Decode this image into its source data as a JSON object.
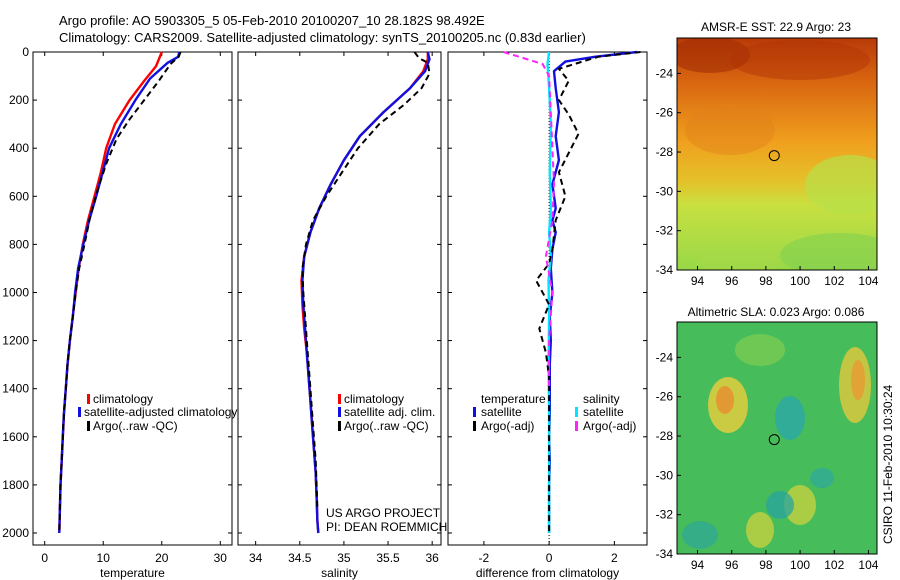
{
  "header": {
    "line1": "Argo profile: AO 5903305_5 05-Feb-2010 20100207_10 28.182S 98.492E",
    "line2": "Climatology: CARS2009. Satellite-adjusted climatology: synTS_20100205.nc (0.83d earlier)"
  },
  "footer": {
    "project": "US ARGO PROJECT",
    "pi": "PI: DEAN ROEMMICH",
    "credit": "CSIRO 11-Feb-2010 10:30:24"
  },
  "colors": {
    "red": "#ff0000",
    "blue": "#1010e0",
    "black": "#000000",
    "cyan": "#00e5ff",
    "magenta": "#ff22ff"
  },
  "chart_data": [
    {
      "type": "line",
      "name": "temperature-profile",
      "xlabel": "temperature",
      "xlim": [
        -2,
        32
      ],
      "ylim": [
        0,
        2050
      ],
      "xticks": [
        0,
        10,
        20,
        30
      ],
      "yticks": [
        0,
        200,
        400,
        600,
        800,
        1000,
        1200,
        1400,
        1600,
        1800,
        2000
      ],
      "legend": [
        "climatology",
        "satellite-adjusted climatology",
        "Argo(..raw -QC)"
      ],
      "series": [
        {
          "name": "climatology",
          "color": "red",
          "dash": false,
          "x": [
            20.0,
            19.6,
            19.0,
            17.0,
            14.5,
            12.0,
            10.5,
            9.6,
            8.5,
            7.4,
            6.5,
            5.8,
            5.3,
            4.8,
            4.3,
            3.9,
            3.6,
            3.3,
            3.1,
            2.9,
            2.7,
            2.6,
            2.5
          ],
          "y": [
            0,
            25,
            60,
            120,
            200,
            300,
            400,
            500,
            600,
            700,
            800,
            900,
            1000,
            1100,
            1200,
            1300,
            1400,
            1500,
            1600,
            1700,
            1800,
            1900,
            2000
          ]
        },
        {
          "name": "satellite-adjusted climatology",
          "color": "blue",
          "dash": false,
          "x": [
            23.0,
            22.8,
            21.0,
            18.0,
            15.5,
            13.0,
            11.0,
            9.9,
            8.8,
            7.6,
            6.6,
            5.7,
            5.2,
            4.8,
            4.3,
            3.9,
            3.6,
            3.3,
            3.1,
            2.9,
            2.7,
            2.6,
            2.5
          ],
          "y": [
            0,
            20,
            45,
            110,
            200,
            300,
            400,
            500,
            600,
            700,
            800,
            900,
            1000,
            1100,
            1200,
            1300,
            1400,
            1500,
            1600,
            1700,
            1800,
            1900,
            2000
          ]
        },
        {
          "name": "Argo(..raw -QC)",
          "color": "black",
          "dash": true,
          "x": [
            23.2,
            22.9,
            21.5,
            19.5,
            17.0,
            14.5,
            12.3,
            10.6,
            9.2,
            7.8,
            6.8,
            5.9,
            5.3,
            4.8,
            4.3,
            3.9,
            3.6,
            3.3,
            3.1,
            2.9,
            2.7,
            2.6,
            2.5
          ],
          "y": [
            0,
            20,
            50,
            120,
            200,
            280,
            360,
            460,
            560,
            680,
            800,
            900,
            1000,
            1100,
            1200,
            1300,
            1400,
            1500,
            1600,
            1700,
            1800,
            1900,
            2000
          ]
        }
      ]
    },
    {
      "type": "line",
      "name": "salinity-profile",
      "xlabel": "salinity",
      "xlim": [
        33.8,
        36.1
      ],
      "ylim": [
        0,
        2050
      ],
      "xticks": [
        34,
        34.5,
        35,
        35.5,
        36
      ],
      "legend": [
        "climatology",
        "satellite adj. clim.",
        "Argo(..raw -QC)"
      ],
      "series": [
        {
          "name": "climatology",
          "color": "red",
          "dash": false,
          "x": [
            35.95,
            35.95,
            35.9,
            35.75,
            35.45,
            35.18,
            35.0,
            34.85,
            34.72,
            34.62,
            34.55,
            34.52,
            34.53,
            34.55,
            34.58,
            34.6,
            34.62,
            34.64,
            34.66,
            34.68,
            34.69,
            34.7,
            34.71
          ],
          "y": [
            0,
            30,
            80,
            150,
            250,
            350,
            450,
            550,
            650,
            750,
            850,
            950,
            1050,
            1150,
            1250,
            1350,
            1450,
            1550,
            1650,
            1750,
            1850,
            1950,
            2000
          ]
        },
        {
          "name": "satellite adj. clim.",
          "color": "blue",
          "dash": false,
          "x": [
            35.95,
            35.97,
            35.92,
            35.75,
            35.45,
            35.18,
            35.0,
            34.85,
            34.72,
            34.62,
            34.55,
            34.53,
            34.54,
            34.56,
            34.58,
            34.6,
            34.62,
            34.64,
            34.66,
            34.68,
            34.69,
            34.7,
            34.71
          ],
          "y": [
            0,
            30,
            80,
            150,
            250,
            350,
            450,
            550,
            650,
            750,
            850,
            950,
            1050,
            1150,
            1250,
            1350,
            1450,
            1550,
            1650,
            1750,
            1850,
            1950,
            2000
          ]
        },
        {
          "name": "Argo(..raw -QC)",
          "color": "black",
          "dash": true,
          "x": [
            35.8,
            35.85,
            35.95,
            35.97,
            35.88,
            35.68,
            35.4,
            35.16,
            34.98,
            34.8,
            34.65,
            34.57,
            34.53,
            34.54,
            34.56,
            34.58,
            34.6,
            34.62,
            34.64,
            34.66,
            34.68,
            34.69,
            34.7
          ],
          "y": [
            0,
            25,
            45,
            90,
            150,
            220,
            300,
            400,
            500,
            600,
            700,
            800,
            900,
            1000,
            1100,
            1200,
            1300,
            1400,
            1500,
            1600,
            1700,
            1800,
            1900
          ]
        }
      ]
    },
    {
      "type": "line",
      "name": "difference-profile",
      "xlabel": "difference from climatology",
      "xlim": [
        -3.1,
        3.0
      ],
      "ylim": [
        0,
        2050
      ],
      "xticks": [
        -2,
        0,
        2
      ],
      "legend_groups": [
        {
          "title": "temperature",
          "items": [
            "satellite",
            "Argo(-adj)"
          ]
        },
        {
          "title": "salinity",
          "items": [
            "satellite",
            "Argo(-adj)"
          ]
        }
      ],
      "series": [
        {
          "name": "temperature satellite",
          "color": "blue",
          "dash": false,
          "x": [
            2.7,
            1.4,
            0.5,
            0.15,
            0.2,
            0.3,
            0.2,
            0.3,
            0.1,
            0.2,
            0.1,
            0.2,
            0.1,
            0.05,
            0.1,
            0.02,
            0.05,
            0.02,
            0.02,
            0.02,
            0.0,
            0.02,
            0.0,
            0.0,
            0.0
          ],
          "y": [
            0,
            20,
            40,
            80,
            150,
            250,
            350,
            450,
            550,
            650,
            700,
            750,
            820,
            900,
            1000,
            1100,
            1200,
            1300,
            1400,
            1500,
            1600,
            1700,
            1800,
            1900,
            2000
          ]
        },
        {
          "name": "temperature Argo(-adj)",
          "color": "black",
          "dash": true,
          "x": [
            2.8,
            1.5,
            0.3,
            0.6,
            0.3,
            0.6,
            0.9,
            0.3,
            0.5,
            0.2,
            0.1,
            0.0,
            -0.4,
            0.0,
            -0.3,
            -0.1,
            0.0,
            0.0,
            0.0,
            0.0,
            0.0
          ],
          "y": [
            0,
            20,
            70,
            120,
            200,
            260,
            340,
            500,
            600,
            700,
            820,
            880,
            950,
            1050,
            1150,
            1250,
            1350,
            1450,
            1600,
            1800,
            2000
          ]
        },
        {
          "name": "salinity satellite",
          "color": "cyan",
          "dash": false,
          "x": [
            0.0,
            -0.05,
            0.0,
            0.05,
            0.02,
            0.05,
            0.0,
            0.05,
            -0.02,
            0.0,
            -0.02,
            0.0,
            0.0,
            0.0,
            0.0
          ],
          "y": [
            0,
            50,
            150,
            300,
            500,
            650,
            750,
            850,
            950,
            1100,
            1300,
            1500,
            1700,
            1850,
            2000
          ]
        },
        {
          "name": "salinity Argo(-adj)",
          "color": "magenta",
          "dash": true,
          "x": [
            -1.4,
            -0.2,
            0.0,
            0.05,
            0.1,
            0.15,
            0.1,
            -0.1,
            0.1,
            0.0,
            0.0
          ],
          "y": [
            0,
            50,
            100,
            250,
            400,
            550,
            700,
            850,
            1000,
            1200,
            1400
          ]
        }
      ]
    },
    {
      "type": "heatmap",
      "name": "sst-map",
      "title": "AMSR-E SST: 22.9 Argo: 23",
      "xlim": [
        92.8,
        104.5
      ],
      "ylim": [
        -34,
        -22.2
      ],
      "xticks": [
        94,
        96,
        98,
        100,
        102,
        104
      ],
      "yticks": [
        -24,
        -26,
        -28,
        -30,
        -32,
        -34
      ],
      "marker": {
        "lon": 98.49,
        "lat": -28.18
      }
    },
    {
      "type": "heatmap",
      "name": "sla-map",
      "title": "Altimetric SLA: 0.023 Argo: 0.086",
      "xlim": [
        92.8,
        104.5
      ],
      "ylim": [
        -34,
        -22.2
      ],
      "xticks": [
        94,
        96,
        98,
        100,
        102,
        104
      ],
      "yticks": [
        -24,
        -26,
        -28,
        -30,
        -32,
        -34
      ],
      "marker": {
        "lon": 98.49,
        "lat": -28.18
      }
    }
  ]
}
